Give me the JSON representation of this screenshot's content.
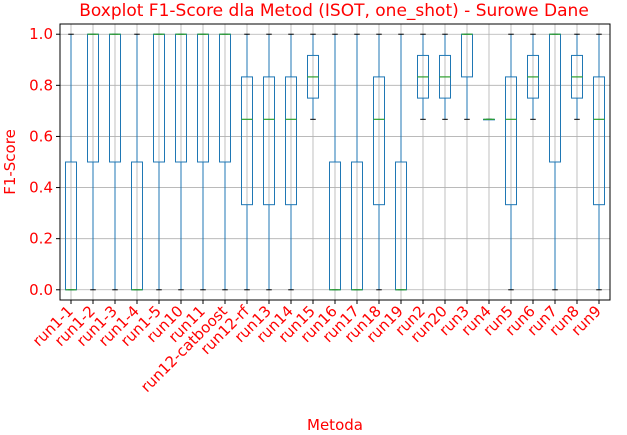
{
  "colors": {
    "text": "#ff0000",
    "box": "#1f77b4",
    "median": "#2ca02c",
    "flier": "#000000",
    "grid": "#b0b0b0",
    "axis": "#000000"
  },
  "chart_data": {
    "type": "boxplot",
    "title": "Boxplot F1-Score dla Metod (ISOT, one_shot) - Surowe Dane",
    "xlabel": "Metoda",
    "ylabel": "F1-Score",
    "ylim": [
      -0.04,
      1.04
    ],
    "yticks": [
      0.0,
      0.2,
      0.4,
      0.6,
      0.8,
      1.0
    ],
    "grid": true,
    "categories": [
      "run1-1",
      "run1-2",
      "run1-3",
      "run1-4",
      "run1-5",
      "run10",
      "run11",
      "run12-catboost",
      "run12-rf",
      "run13",
      "run14",
      "run15",
      "run16",
      "run17",
      "run18",
      "run19",
      "run2",
      "run20",
      "run3",
      "run4",
      "run5",
      "run6",
      "run7",
      "run8",
      "run9"
    ],
    "boxes": [
      {
        "whislo": 0.0,
        "q1": 0.0,
        "med": 0.0,
        "q3": 0.5,
        "whishi": 1.0,
        "fliers": []
      },
      {
        "whislo": 0.0,
        "q1": 0.5,
        "med": 1.0,
        "q3": 1.0,
        "whishi": 1.0,
        "fliers": []
      },
      {
        "whislo": 0.0,
        "q1": 0.5,
        "med": 1.0,
        "q3": 1.0,
        "whishi": 1.0,
        "fliers": []
      },
      {
        "whislo": 0.0,
        "q1": 0.0,
        "med": 0.0,
        "q3": 0.5,
        "whishi": 1.0,
        "fliers": []
      },
      {
        "whislo": 0.0,
        "q1": 0.5,
        "med": 1.0,
        "q3": 1.0,
        "whishi": 1.0,
        "fliers": []
      },
      {
        "whislo": 0.0,
        "q1": 0.5,
        "med": 1.0,
        "q3": 1.0,
        "whishi": 1.0,
        "fliers": []
      },
      {
        "whislo": 0.0,
        "q1": 0.5,
        "med": 1.0,
        "q3": 1.0,
        "whishi": 1.0,
        "fliers": []
      },
      {
        "whislo": 0.0,
        "q1": 0.5,
        "med": 1.0,
        "q3": 1.0,
        "whishi": 1.0,
        "fliers": []
      },
      {
        "whislo": 0.0,
        "q1": 0.333,
        "med": 0.667,
        "q3": 0.833,
        "whishi": 1.0,
        "fliers": []
      },
      {
        "whislo": 0.0,
        "q1": 0.333,
        "med": 0.667,
        "q3": 0.833,
        "whishi": 1.0,
        "fliers": []
      },
      {
        "whislo": 0.0,
        "q1": 0.333,
        "med": 0.667,
        "q3": 0.833,
        "whishi": 1.0,
        "fliers": []
      },
      {
        "whislo": 0.667,
        "q1": 0.75,
        "med": 0.833,
        "q3": 0.917,
        "whishi": 1.0,
        "fliers": []
      },
      {
        "whislo": 0.0,
        "q1": 0.0,
        "med": 0.0,
        "q3": 0.5,
        "whishi": 1.0,
        "fliers": []
      },
      {
        "whislo": 0.0,
        "q1": 0.0,
        "med": 0.0,
        "q3": 0.5,
        "whishi": 1.0,
        "fliers": []
      },
      {
        "whislo": 0.0,
        "q1": 0.333,
        "med": 0.667,
        "q3": 0.833,
        "whishi": 1.0,
        "fliers": []
      },
      {
        "whislo": 0.0,
        "q1": 0.0,
        "med": 0.0,
        "q3": 0.5,
        "whishi": 1.0,
        "fliers": []
      },
      {
        "whislo": 0.667,
        "q1": 0.75,
        "med": 0.833,
        "q3": 0.917,
        "whishi": 1.0,
        "fliers": []
      },
      {
        "whislo": 0.667,
        "q1": 0.75,
        "med": 0.833,
        "q3": 0.917,
        "whishi": 1.0,
        "fliers": []
      },
      {
        "whislo": 0.667,
        "q1": 0.833,
        "med": 1.0,
        "q3": 1.0,
        "whishi": 1.0,
        "fliers": []
      },
      {
        "whislo": 0.667,
        "q1": 0.667,
        "med": 0.667,
        "q3": 0.667,
        "whishi": 0.667,
        "fliers": []
      },
      {
        "whislo": 0.0,
        "q1": 0.333,
        "med": 0.667,
        "q3": 0.833,
        "whishi": 1.0,
        "fliers": []
      },
      {
        "whislo": 0.667,
        "q1": 0.75,
        "med": 0.833,
        "q3": 0.917,
        "whishi": 1.0,
        "fliers": []
      },
      {
        "whislo": 0.0,
        "q1": 0.5,
        "med": 1.0,
        "q3": 1.0,
        "whishi": 1.0,
        "fliers": []
      },
      {
        "whislo": 0.667,
        "q1": 0.75,
        "med": 0.833,
        "q3": 0.917,
        "whishi": 1.0,
        "fliers": []
      },
      {
        "whislo": 0.0,
        "q1": 0.333,
        "med": 0.667,
        "q3": 0.833,
        "whishi": 1.0,
        "fliers": []
      }
    ]
  }
}
